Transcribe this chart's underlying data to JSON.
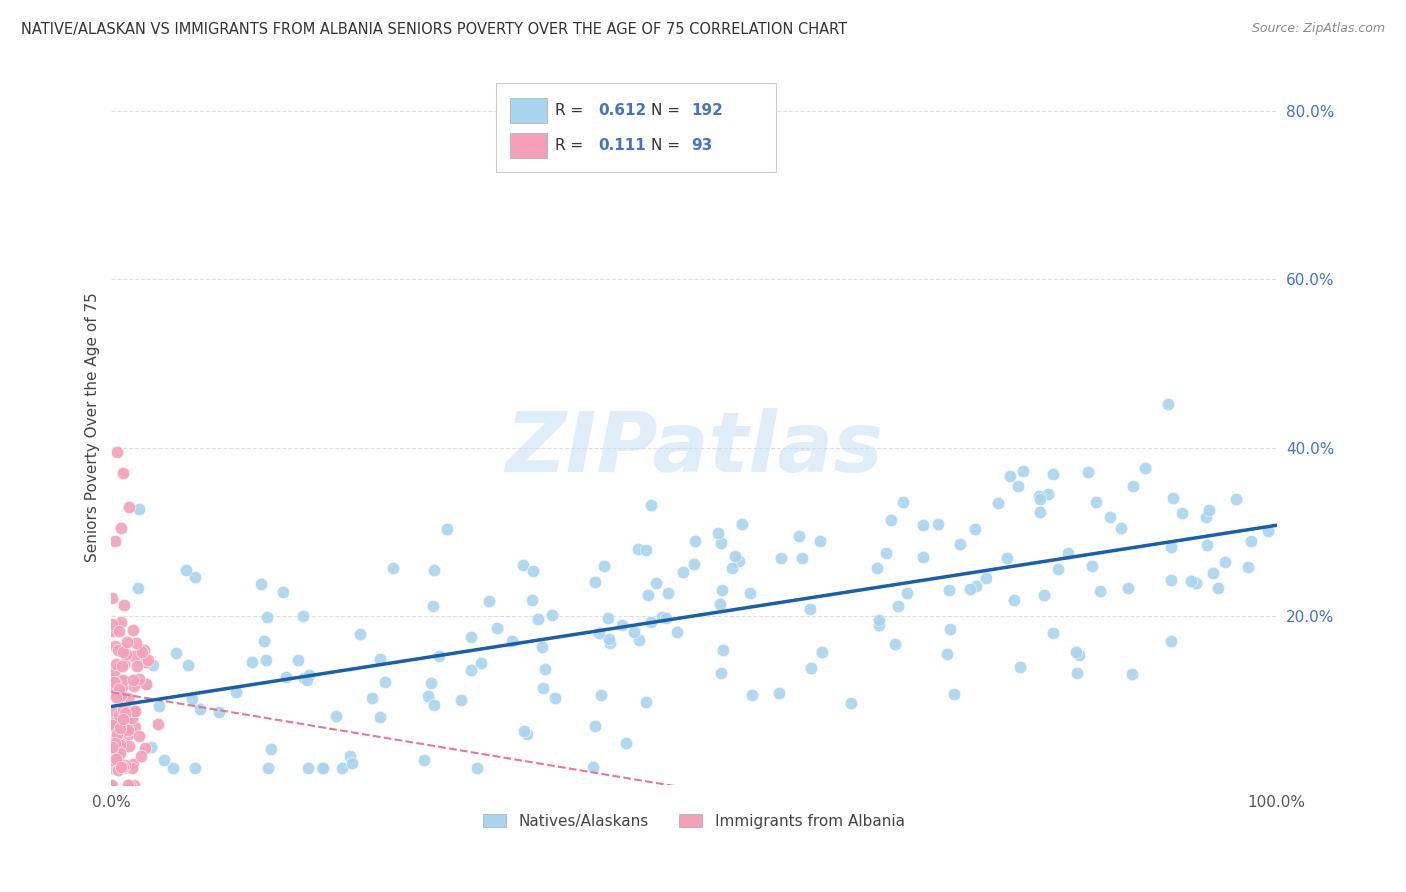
{
  "title": "NATIVE/ALASKAN VS IMMIGRANTS FROM ALBANIA SENIORS POVERTY OVER THE AGE OF 75 CORRELATION CHART",
  "source": "Source: ZipAtlas.com",
  "ylabel": "Seniors Poverty Over the Age of 75",
  "xlim": [
    0,
    1.0
  ],
  "ylim": [
    0,
    0.85
  ],
  "blue_R": 0.612,
  "blue_N": 192,
  "pink_R": 0.111,
  "pink_N": 93,
  "blue_color": "#A8D4F0",
  "pink_color": "#F4A0B8",
  "blue_line_color": "#1A5FA8",
  "pink_line_color": "#E07898",
  "watermark": "ZIPatlas",
  "legend_labels": [
    "Natives/Alaskans",
    "Immigrants from Albania"
  ],
  "background_color": "#FFFFFF",
  "grid_color": "#DDDDDD",
  "ytick_color": "#4472C4",
  "xtick_color": "#555555"
}
